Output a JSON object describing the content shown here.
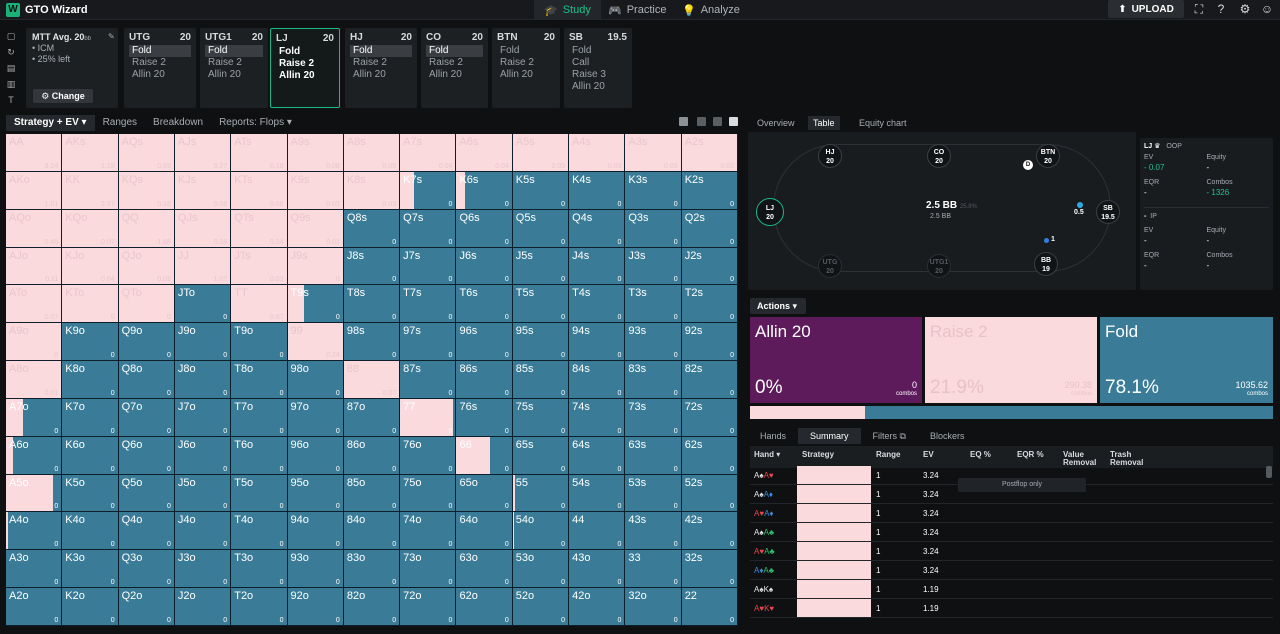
{
  "app": {
    "title": "GTO Wizard"
  },
  "nav": [
    {
      "label": "Study",
      "icon": "graduation-cap-icon",
      "active": true
    },
    {
      "label": "Practice",
      "icon": "gamepad-icon",
      "active": false
    },
    {
      "label": "Analyze",
      "icon": "lightbulb-icon",
      "active": false
    }
  ],
  "upload_label": "UPLOAD",
  "mtt": {
    "title": "MTT  Avg. 20",
    "title_sub": "bb",
    "lines": [
      "• ICM",
      "• 25% left"
    ],
    "change_label": "Change"
  },
  "seats": [
    {
      "pos": "UTG",
      "stack": "20",
      "actions": [
        "Fold",
        "Raise 2",
        "Allin 20"
      ],
      "selected": 0,
      "current": false
    },
    {
      "pos": "UTG1",
      "stack": "20",
      "actions": [
        "Fold",
        "Raise 2",
        "Allin 20"
      ],
      "selected": 0,
      "current": false
    },
    {
      "pos": "LJ",
      "stack": "20",
      "actions": [
        "Fold",
        "Raise 2",
        "Allin 20"
      ],
      "selected": -1,
      "current": true
    },
    {
      "pos": "HJ",
      "stack": "20",
      "actions": [
        "Fold",
        "Raise 2",
        "Allin 20"
      ],
      "selected": 0,
      "current": false
    },
    {
      "pos": "CO",
      "stack": "20",
      "actions": [
        "Fold",
        "Raise 2",
        "Allin 20"
      ],
      "selected": 0,
      "current": false
    },
    {
      "pos": "BTN",
      "stack": "20",
      "actions": [
        "Fold",
        "Raise 2",
        "Allin 20"
      ],
      "selected": -1,
      "current": false
    },
    {
      "pos": "SB",
      "stack": "19.5",
      "actions": [
        "Fold",
        "Call",
        "Raise 3",
        "Allin 20"
      ],
      "selected": -1,
      "current": false
    }
  ],
  "left_tabs": [
    {
      "label": "Strategy + EV ▾",
      "active": true
    },
    {
      "label": "Ranges",
      "active": false
    },
    {
      "label": "Breakdown",
      "active": false
    },
    {
      "label": "Reports: Flops ▾",
      "active": false
    }
  ],
  "matrix": {
    "rows": [
      [
        [
          "AA",
          1,
          "3.24"
        ],
        [
          "AKs",
          1,
          "1.19"
        ],
        [
          "AQs",
          1,
          "0.65"
        ],
        [
          "AJs",
          1,
          "0.27"
        ],
        [
          "ATs",
          1,
          "0.18"
        ],
        [
          "A9s",
          1,
          "0.08"
        ],
        [
          "A8s",
          1,
          "0.05"
        ],
        [
          "A7s",
          1,
          "0.04"
        ],
        [
          "A6s",
          1,
          "0.04"
        ],
        [
          "A5s",
          1,
          "0.05"
        ],
        [
          "A4s",
          1,
          "0.03"
        ],
        [
          "A3s",
          1,
          "0.03"
        ],
        [
          "A2s",
          1,
          "0.02"
        ]
      ],
      [
        [
          "AKo",
          1,
          "1.01"
        ],
        [
          "KK",
          1,
          "2.37"
        ],
        [
          "KQs",
          1,
          "0.18"
        ],
        [
          "KJs",
          1,
          "0.08"
        ],
        [
          "KTs",
          1,
          "0.06"
        ],
        [
          "K9s",
          1,
          "0.03"
        ],
        [
          "K8s",
          1,
          "0.03"
        ],
        [
          "K7s",
          0.25,
          "0"
        ],
        [
          "K6s",
          0.15,
          "0"
        ],
        [
          "K5s",
          0,
          "0"
        ],
        [
          "K4s",
          0,
          "0"
        ],
        [
          "K3s",
          0,
          "0"
        ],
        [
          "K2s",
          0,
          "0"
        ]
      ],
      [
        [
          "AQo",
          1,
          "0.45"
        ],
        [
          "KQo",
          1,
          "0.07"
        ],
        [
          "QQ",
          1,
          "1.68"
        ],
        [
          "QJs",
          1,
          "0.08"
        ],
        [
          "QTs",
          1,
          "0.04"
        ],
        [
          "Q9s",
          1,
          "0.01"
        ],
        [
          "Q8s",
          0,
          "0"
        ],
        [
          "Q7s",
          0,
          "0"
        ],
        [
          "Q6s",
          0,
          "0"
        ],
        [
          "Q5s",
          0,
          "0"
        ],
        [
          "Q4s",
          0,
          "0"
        ],
        [
          "Q3s",
          0,
          "0"
        ],
        [
          "Q2s",
          0,
          "0"
        ]
      ],
      [
        [
          "AJo",
          1,
          "0.11"
        ],
        [
          "KJo",
          1,
          "0.04"
        ],
        [
          "QJo",
          1,
          "0.02"
        ],
        [
          "JJ",
          1,
          "1.07"
        ],
        [
          "JTs",
          1,
          "0.03"
        ],
        [
          "J9s",
          1,
          "0"
        ],
        [
          "J8s",
          0,
          "0"
        ],
        [
          "J7s",
          0,
          "0"
        ],
        [
          "J6s",
          0,
          "0"
        ],
        [
          "J5s",
          0,
          "0"
        ],
        [
          "J4s",
          0,
          "0"
        ],
        [
          "J3s",
          0,
          "0"
        ],
        [
          "J2s",
          0,
          "0"
        ]
      ],
      [
        [
          "ATo",
          1,
          "0.07"
        ],
        [
          "KTo",
          1,
          "0"
        ],
        [
          "QTo",
          1,
          "0"
        ],
        [
          "JTo",
          0,
          "0"
        ],
        [
          "TT",
          1,
          "0.67"
        ],
        [
          "T9s",
          0.3,
          "0"
        ],
        [
          "T8s",
          0,
          "0"
        ],
        [
          "T7s",
          0,
          "0"
        ],
        [
          "T6s",
          0,
          "0"
        ],
        [
          "T5s",
          0,
          "0"
        ],
        [
          "T4s",
          0,
          "0"
        ],
        [
          "T3s",
          0,
          "0"
        ],
        [
          "T2s",
          0,
          "0"
        ]
      ],
      [
        [
          "A9o",
          1,
          "0"
        ],
        [
          "K9o",
          0,
          "0"
        ],
        [
          "Q9o",
          0,
          "0"
        ],
        [
          "J9o",
          0,
          "0"
        ],
        [
          "T9o",
          0,
          "0"
        ],
        [
          "99",
          1,
          "0.24"
        ],
        [
          "98s",
          0,
          "0"
        ],
        [
          "97s",
          0,
          "0"
        ],
        [
          "96s",
          0,
          "0"
        ],
        [
          "95s",
          0,
          "0"
        ],
        [
          "94s",
          0,
          "0"
        ],
        [
          "93s",
          0,
          "0"
        ],
        [
          "92s",
          0,
          "0"
        ]
      ],
      [
        [
          "A8o",
          1,
          "0.01"
        ],
        [
          "K8o",
          0,
          "0"
        ],
        [
          "Q8o",
          0,
          "0"
        ],
        [
          "J8o",
          0,
          "0"
        ],
        [
          "T8o",
          0,
          "0"
        ],
        [
          "98o",
          0,
          "0"
        ],
        [
          "88",
          1,
          "0.07"
        ],
        [
          "87s",
          0,
          "0"
        ],
        [
          "86s",
          0,
          "0"
        ],
        [
          "85s",
          0,
          "0"
        ],
        [
          "84s",
          0,
          "0"
        ],
        [
          "83s",
          0,
          "0"
        ],
        [
          "82s",
          0,
          "0"
        ]
      ],
      [
        [
          "A7o",
          0.3,
          "0"
        ],
        [
          "K7o",
          0,
          "0"
        ],
        [
          "Q7o",
          0,
          "0"
        ],
        [
          "J7o",
          0,
          "0"
        ],
        [
          "T7o",
          0,
          "0"
        ],
        [
          "97o",
          0,
          "0"
        ],
        [
          "87o",
          0,
          "0"
        ],
        [
          "77",
          0.95,
          "0"
        ],
        [
          "76s",
          0,
          "0"
        ],
        [
          "75s",
          0,
          "0"
        ],
        [
          "74s",
          0,
          "0"
        ],
        [
          "73s",
          0,
          "0"
        ],
        [
          "72s",
          0,
          "0"
        ]
      ],
      [
        [
          "A6o",
          0.12,
          "0"
        ],
        [
          "K6o",
          0,
          "0"
        ],
        [
          "Q6o",
          0,
          "0"
        ],
        [
          "J6o",
          0,
          "0"
        ],
        [
          "T6o",
          0,
          "0"
        ],
        [
          "96o",
          0,
          "0"
        ],
        [
          "86o",
          0,
          "0"
        ],
        [
          "76o",
          0,
          "0"
        ],
        [
          "66",
          0.6,
          "0"
        ],
        [
          "65s",
          0,
          "0"
        ],
        [
          "64s",
          0,
          "0"
        ],
        [
          "63s",
          0,
          "0"
        ],
        [
          "62s",
          0,
          "0"
        ]
      ],
      [
        [
          "A5o",
          0.85,
          "0"
        ],
        [
          "K5o",
          0,
          "0"
        ],
        [
          "Q5o",
          0,
          "0"
        ],
        [
          "J5o",
          0,
          "0"
        ],
        [
          "T5o",
          0,
          "0"
        ],
        [
          "95o",
          0,
          "0"
        ],
        [
          "85o",
          0,
          "0"
        ],
        [
          "75o",
          0,
          "0"
        ],
        [
          "65o",
          0,
          "0"
        ],
        [
          "55",
          0.04,
          "0"
        ],
        [
          "54s",
          0,
          "0"
        ],
        [
          "53s",
          0,
          "0"
        ],
        [
          "52s",
          0,
          "0"
        ]
      ],
      [
        [
          "A4o",
          0.03,
          "0"
        ],
        [
          "K4o",
          0,
          "0"
        ],
        [
          "Q4o",
          0,
          "0"
        ],
        [
          "J4o",
          0,
          "0"
        ],
        [
          "T4o",
          0,
          "0"
        ],
        [
          "94o",
          0,
          "0"
        ],
        [
          "84o",
          0,
          "0"
        ],
        [
          "74o",
          0,
          "0"
        ],
        [
          "64o",
          0,
          "0"
        ],
        [
          "54o",
          0.02,
          "0"
        ],
        [
          "44",
          0,
          "0"
        ],
        [
          "43s",
          0,
          "0"
        ],
        [
          "42s",
          0,
          "0"
        ]
      ],
      [
        [
          "A3o",
          0,
          "0"
        ],
        [
          "K3o",
          0,
          "0"
        ],
        [
          "Q3o",
          0,
          "0"
        ],
        [
          "J3o",
          0,
          "0"
        ],
        [
          "T3o",
          0,
          "0"
        ],
        [
          "93o",
          0,
          "0"
        ],
        [
          "83o",
          0,
          "0"
        ],
        [
          "73o",
          0,
          "0"
        ],
        [
          "63o",
          0,
          "0"
        ],
        [
          "53o",
          0,
          "0"
        ],
        [
          "43o",
          0,
          "0"
        ],
        [
          "33",
          0,
          "0"
        ],
        [
          "32s",
          0,
          "0"
        ]
      ],
      [
        [
          "A2o",
          0,
          "0"
        ],
        [
          "K2o",
          0,
          "0"
        ],
        [
          "Q2o",
          0,
          "0"
        ],
        [
          "J2o",
          0,
          "0"
        ],
        [
          "T2o",
          0,
          "0"
        ],
        [
          "92o",
          0,
          "0"
        ],
        [
          "82o",
          0,
          "0"
        ],
        [
          "72o",
          0,
          "0"
        ],
        [
          "62o",
          0,
          "0"
        ],
        [
          "52o",
          0,
          "0"
        ],
        [
          "42o",
          0,
          "0"
        ],
        [
          "32o",
          0,
          "0"
        ],
        [
          "22",
          0,
          "0"
        ]
      ]
    ]
  },
  "right_tabs": [
    {
      "label": "Overview",
      "active": false
    },
    {
      "label": "Table",
      "active": true
    },
    {
      "label": "Equity chart",
      "active": false
    }
  ],
  "table": {
    "pot": "2.5 BB",
    "pot_pct": "25.8%",
    "pot_sub": "2.5 BB",
    "sb_bet": "0.5",
    "bb_bet": "1",
    "dealer": "D",
    "seats": [
      {
        "pos": "LJ",
        "stack": "20"
      },
      {
        "pos": "HJ",
        "stack": "20"
      },
      {
        "pos": "CO",
        "stack": "20"
      },
      {
        "pos": "BTN",
        "stack": "20"
      },
      {
        "pos": "SB",
        "stack": "19.5"
      },
      {
        "pos": "BB",
        "stack": "19"
      },
      {
        "pos": "UTG",
        "stack": "20"
      },
      {
        "pos": "UTG1",
        "stack": "20"
      }
    ]
  },
  "stats": {
    "p1": {
      "name": "LJ ♛",
      "tag": "OOP",
      "ev_label": "EV",
      "ev": "- 0.07",
      "eq_label": "Equity",
      "eq": "-",
      "eqr_label": "EQR",
      "eqr": "-",
      "combos_label": "Combos",
      "combos": "- 1326"
    },
    "p2": {
      "name": "-",
      "tag": "IP",
      "ev_label": "EV",
      "ev": "-",
      "eq_label": "Equity",
      "eq": "-",
      "eqr_label": "EQR",
      "eqr": "-",
      "combos_label": "Combos",
      "combos": "-"
    }
  },
  "actions": {
    "header": "Actions ▾",
    "items": [
      {
        "label": "Allin 20",
        "pct": "0%",
        "combos": "0",
        "combos_label": "combos",
        "color": "#5e1b5c",
        "fraction": 0
      },
      {
        "label": "Raise 2",
        "pct": "21.9%",
        "combos": "290.38",
        "combos_label": "combos",
        "color": "#fadadd",
        "fraction": 0.219
      },
      {
        "label": "Fold",
        "pct": "78.1%",
        "combos": "1035.62",
        "combos_label": "combos",
        "color": "#3a7c97",
        "fraction": 0.781
      }
    ]
  },
  "bottom_tabs": [
    {
      "label": "Hands",
      "active": false
    },
    {
      "label": "Summary",
      "active": true
    },
    {
      "label": "Filters ⧉",
      "active": false
    },
    {
      "label": "Blockers",
      "active": false
    }
  ],
  "hands_table": {
    "headers": [
      "Hand ▾",
      "Strategy",
      "Range",
      "EV",
      "EQ %",
      "EQR %",
      "Value Removal",
      "Trash Removal"
    ],
    "postflop_note": "Postflop only",
    "rows": [
      {
        "c1": "A♠",
        "c2": "A♥",
        "col1": "wh",
        "col2": "red",
        "range": "1",
        "ev": "3.24"
      },
      {
        "c1": "A♠",
        "c2": "A♦",
        "col1": "wh",
        "col2": "blu",
        "range": "1",
        "ev": "3.24"
      },
      {
        "c1": "A♥",
        "c2": "A♦",
        "col1": "red",
        "col2": "blu",
        "range": "1",
        "ev": "3.24"
      },
      {
        "c1": "A♠",
        "c2": "A♣",
        "col1": "wh",
        "col2": "gr",
        "range": "1",
        "ev": "3.24"
      },
      {
        "c1": "A♥",
        "c2": "A♣",
        "col1": "red",
        "col2": "gr",
        "range": "1",
        "ev": "3.24"
      },
      {
        "c1": "A♦",
        "c2": "A♣",
        "col1": "blu",
        "col2": "gr",
        "range": "1",
        "ev": "3.24"
      },
      {
        "c1": "A♠",
        "c2": "K♠",
        "col1": "wh",
        "col2": "wh",
        "range": "1",
        "ev": "1.19"
      },
      {
        "c1": "A♥",
        "c2": "K♥",
        "col1": "red",
        "col2": "red",
        "range": "1",
        "ev": "1.19"
      }
    ]
  }
}
